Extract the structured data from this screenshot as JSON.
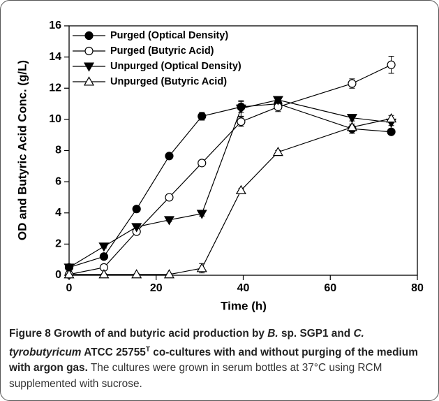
{
  "chart_data": {
    "type": "line",
    "x_label": "Time (h)",
    "y_label": "OD and Butyric Acid Conc. (g/L)",
    "xlim": [
      0,
      80
    ],
    "xticks": [
      0,
      20,
      40,
      60,
      80
    ],
    "ylim": [
      0,
      16
    ],
    "yticks": [
      0,
      2,
      4,
      6,
      8,
      10,
      12,
      14,
      16
    ],
    "legend": "upper left",
    "grid": false,
    "x": [
      0,
      8,
      15.5,
      23,
      30.5,
      39.5,
      48,
      65,
      74
    ],
    "series": [
      {
        "name": "Purged (Optical Density)",
        "color": "#000000",
        "marker": "filled-circle",
        "values": [
          0.5,
          1.2,
          4.25,
          7.65,
          10.2,
          10.8,
          11.0,
          9.4,
          9.2
        ],
        "errors": [
          0.1,
          0.1,
          0.15,
          0.15,
          0.25,
          0.35,
          0.2,
          0.3,
          0.15
        ]
      },
      {
        "name": "Purged (Butyric Acid)",
        "color": "#000000",
        "marker": "open-circle",
        "values": [
          0.05,
          0.5,
          2.8,
          5.0,
          7.2,
          9.85,
          10.8,
          12.3,
          13.5
        ],
        "errors": [
          0.05,
          0.05,
          0.15,
          0.1,
          0.1,
          0.3,
          0.3,
          0.3,
          0.55
        ]
      },
      {
        "name": "Unpurged (Optical Density)",
        "color": "#000000",
        "marker": "filled-triangle-down",
        "values": [
          0.5,
          1.85,
          3.1,
          3.55,
          3.95,
          10.7,
          11.25,
          10.1,
          9.8
        ],
        "errors": [
          0.1,
          0.1,
          0.2,
          0.1,
          0.15,
          0.5,
          0.2,
          0.2,
          0.2
        ]
      },
      {
        "name": "Unpurged (Butyric Acid)",
        "color": "#000000",
        "marker": "open-triangle-up",
        "values": [
          0.05,
          0.05,
          0.05,
          0.05,
          0.45,
          5.45,
          7.9,
          9.5,
          10.05
        ],
        "errors": [
          0.05,
          0.05,
          0.05,
          0.05,
          0.3,
          0.1,
          0.1,
          0.2,
          0.2
        ]
      }
    ],
    "caption": [
      "Figure 8",
      " Growth of and butyric acid production by ",
      "B.",
      " sp. SGP1 and ",
      "C. tyrobutyricum",
      " ATCC 25755",
      "T",
      " co-cultures with and without purging of the medium with argon gas.",
      " The cultures were grown in serum bottles at 37°C using RCM supplemented with sucrose."
    ]
  }
}
